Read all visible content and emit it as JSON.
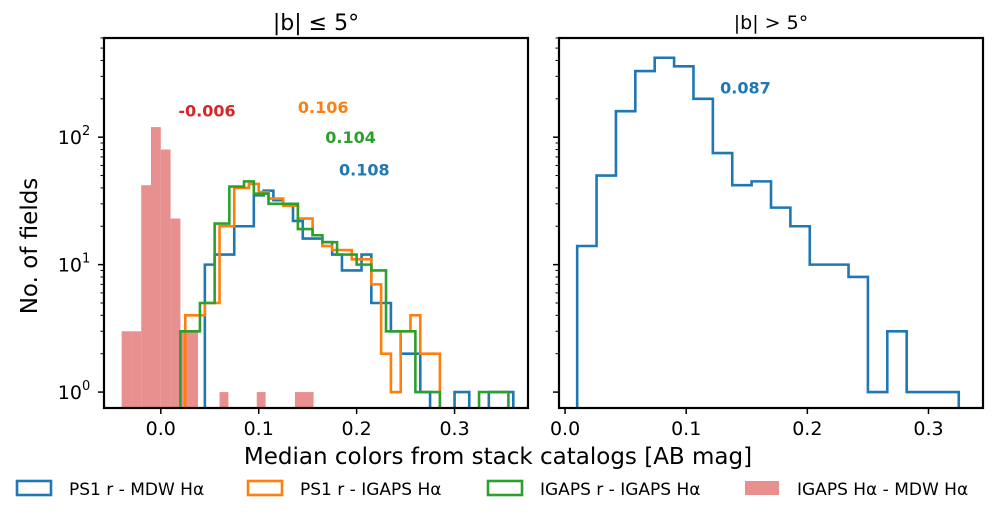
{
  "chart_data": [
    {
      "type": "histogram",
      "title": "|b| ≤ 5°",
      "ylabel": "No. of fields",
      "yscale": "log",
      "xlim": [
        -0.058,
        0.375
      ],
      "ylim": [
        0.75,
        600
      ],
      "xticks": [
        0.0,
        0.1,
        0.2,
        0.3
      ],
      "xtick_labels": [
        "0.0",
        "0.1",
        "0.2",
        "0.3"
      ],
      "yticks": [
        1,
        10,
        100
      ],
      "ytick_labels": [
        "10",
        "10",
        "10"
      ],
      "ytick_exponents": [
        "0",
        "1",
        "2"
      ],
      "series": [
        {
          "name": "IGAPS Hα - MDW Hα",
          "kind": "filled",
          "color": "#e8908f",
          "edges": [
            -0.04,
            -0.03,
            -0.02,
            -0.01,
            0.0,
            0.01,
            0.02,
            0.03
          ],
          "values": [
            3,
            3,
            42,
            120,
            80,
            23,
            3
          ],
          "extra_bars": [
            {
              "x0": 0.029,
              "x1": 0.038,
              "value": 3
            },
            {
              "x0": 0.06,
              "x1": 0.069,
              "value": 1
            },
            {
              "x0": 0.098,
              "x1": 0.107,
              "value": 1
            },
            {
              "x0": 0.137,
              "x1": 0.156,
              "value": 1
            }
          ]
        },
        {
          "name": "PS1 r - MDW Hα",
          "kind": "step",
          "color": "#1f77b4",
          "edges": [
            0.045,
            0.055,
            0.075,
            0.095,
            0.105,
            0.115,
            0.125,
            0.135,
            0.145,
            0.165,
            0.175,
            0.185,
            0.205,
            0.215,
            0.235,
            0.245,
            0.255,
            0.265,
            0.275
          ],
          "values": [
            10,
            12,
            20,
            35,
            38,
            32,
            30,
            22,
            16,
            15,
            12,
            9,
            12,
            5,
            3,
            2,
            2,
            1
          ],
          "extra_steps": [
            {
              "x0": 0.3,
              "x1": 0.315,
              "value": 1
            },
            {
              "x0": 0.335,
              "x1": 0.36,
              "value": 1
            }
          ]
        },
        {
          "name": "PS1 r - IGAPS Hα",
          "kind": "step",
          "color": "#ff7f0e",
          "edges": [
            0.025,
            0.045,
            0.06,
            0.075,
            0.09,
            0.1,
            0.11,
            0.125,
            0.14,
            0.155,
            0.165,
            0.175,
            0.195,
            0.215,
            0.225,
            0.235,
            0.245,
            0.255,
            0.265,
            0.285
          ],
          "values": [
            4,
            5,
            20,
            40,
            43,
            37,
            33,
            29,
            23,
            17,
            14,
            13,
            11,
            7,
            2,
            1,
            3,
            4,
            2
          ],
          "extra_steps": []
        },
        {
          "name": "IGAPS r - IGAPS Hα",
          "kind": "step",
          "color": "#2ca02c",
          "edges": [
            0.02,
            0.04,
            0.055,
            0.07,
            0.085,
            0.095,
            0.11,
            0.125,
            0.14,
            0.155,
            0.165,
            0.18,
            0.2,
            0.215,
            0.23,
            0.245,
            0.26,
            0.285
          ],
          "values": [
            3,
            5,
            21,
            41,
            45,
            36,
            30,
            30,
            19,
            17,
            15,
            12,
            10,
            9,
            3,
            3,
            1,
            0.75
          ],
          "extra_steps": [
            {
              "x0": 0.325,
              "x1": 0.355,
              "value": 1
            }
          ]
        }
      ],
      "annotations": [
        {
          "text": "-0.006",
          "color": "#d62728",
          "x": 0.018,
          "y": 145
        },
        {
          "text": "0.106",
          "color": "#ff7f0e",
          "x": 0.14,
          "y": 155
        },
        {
          "text": "0.104",
          "color": "#2ca02c",
          "x": 0.168,
          "y": 90
        },
        {
          "text": "0.108",
          "color": "#1f77b4",
          "x": 0.182,
          "y": 50
        }
      ]
    },
    {
      "type": "histogram",
      "title": "|b| > 5°",
      "yscale": "log",
      "xlim": [
        -0.005,
        0.345
      ],
      "ylim": [
        0.75,
        600
      ],
      "xticks": [
        0.0,
        0.1,
        0.2,
        0.3
      ],
      "xtick_labels": [
        "0.0",
        "0.1",
        "0.2",
        "0.3"
      ],
      "series": [
        {
          "name": "PS1 r - MDW Hα",
          "kind": "step",
          "color": "#1f77b4",
          "edges": [
            0.01,
            0.026,
            0.042,
            0.058,
            0.074,
            0.09,
            0.106,
            0.122,
            0.138,
            0.154,
            0.17,
            0.186,
            0.202,
            0.218,
            0.234,
            0.25,
            0.266,
            0.282,
            0.298,
            0.325
          ],
          "values": [
            14,
            50,
            160,
            330,
            420,
            360,
            200,
            75,
            42,
            45,
            28,
            20,
            10,
            10,
            8,
            1,
            3,
            1,
            1
          ],
          "extra_steps": []
        }
      ],
      "annotations": [
        {
          "text": "0.087",
          "color": "#1f77b4",
          "x": 0.128,
          "y": 220
        }
      ]
    }
  ],
  "xlabel": "Median colors from stack catalogs [AB mag]",
  "legend": [
    {
      "label": "PS1 r - MDW Hα",
      "color": "#1f77b4",
      "kind": "step"
    },
    {
      "label": "PS1 r - IGAPS Hα",
      "color": "#ff7f0e",
      "kind": "step"
    },
    {
      "label": "IGAPS r - IGAPS Hα",
      "color": "#2ca02c",
      "kind": "step"
    },
    {
      "label": "IGAPS Hα - MDW Hα",
      "color": "#e8908f",
      "kind": "filled"
    }
  ]
}
